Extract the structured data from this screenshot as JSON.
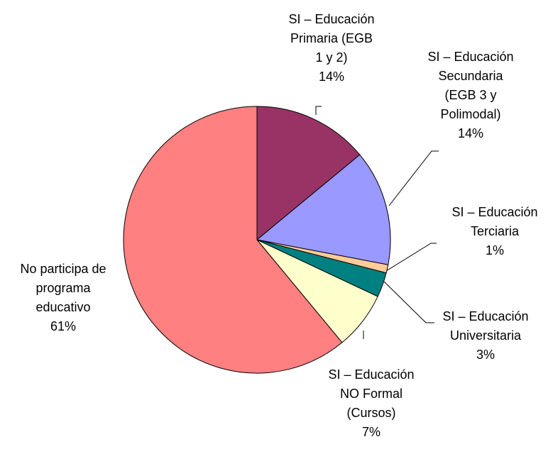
{
  "chart_data": {
    "type": "pie",
    "categories": [
      "SI – Educación\nPrimaria (EGB\n1 y 2)",
      "SI – Educación\nSecundaria\n(EGB 3 y\nPolimodal)",
      "SI – Educación\nTerciaria",
      "SI – Educación\nUniversitaria",
      "SI – Educación\nNO Formal\n(Cursos)",
      "No participa de\nprograma\neducativo"
    ],
    "values": [
      14,
      14,
      1,
      3,
      7,
      61
    ],
    "value_labels": [
      "14%",
      "14%",
      "1%",
      "3%",
      "7%",
      "61%"
    ],
    "colors": [
      "#993366",
      "#9999ff",
      "#ffcc99",
      "#008080",
      "#ffffcc",
      "#ff8080"
    ]
  }
}
